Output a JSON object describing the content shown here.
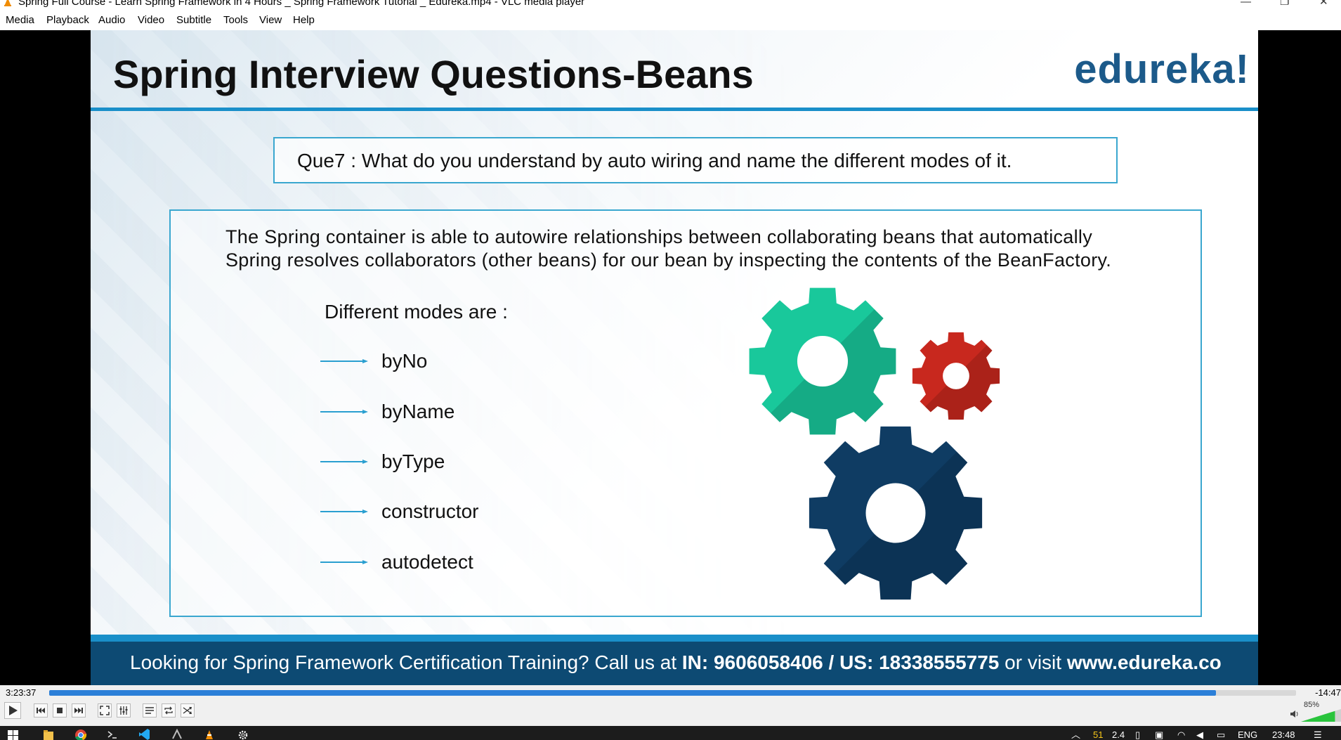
{
  "window": {
    "title": "Spring Full Course - Learn Spring Framework in 4 Hours _ Spring Framework Tutorial _ Edureka.mp4 - VLC media player",
    "minimize_glyph": "—",
    "restore_glyph": "❐",
    "close_glyph": "✕"
  },
  "menu": {
    "items": [
      "Media",
      "Playback",
      "Audio",
      "Video",
      "Subtitle",
      "Tools",
      "View",
      "Help"
    ]
  },
  "slide": {
    "title": "Spring Interview Questions-Beans",
    "logo": "edureka!",
    "question": "Que7 : What do you understand by auto wiring and name the different modes of it.",
    "answer_line1": "The Spring container is able to autowire relationships between collaborating beans that  automatically",
    "answer_line2": "Spring resolves collaborators (other beans) for our bean by inspecting the contents of the BeanFactory.",
    "modes_heading": "Different modes are :",
    "modes": [
      "byNo",
      "byName",
      "byType",
      "constructor",
      "autodetect"
    ],
    "banner_prefix": "Looking for Spring Framework Certification Training? Call us at ",
    "banner_phone": "IN: 9606058406 / US: 18338555775",
    "banner_middle": " or visit ",
    "banner_site": "www.edureka.co",
    "colors": {
      "accent": "#1a8fc9",
      "banner": "#0d4a73",
      "gear_green": "#19c89b",
      "gear_red": "#c8281e",
      "gear_navy": "#0f3c63"
    }
  },
  "player": {
    "elapsed": "3:23:37",
    "remaining": "-14:47",
    "progress_fraction": 0.936,
    "volume": "85%",
    "volume_fraction": 0.85,
    "icons": [
      "play-icon",
      "previous-icon",
      "stop-icon",
      "next-icon",
      "fullscreen-icon",
      "extended-settings-icon",
      "playlist-icon",
      "loop-icon",
      "shuffle-icon",
      "volume-icon"
    ]
  },
  "taskbar": {
    "apps": [
      "windows-start-icon",
      "file-explorer-icon",
      "chrome-icon",
      "terminal-icon",
      "vscode-icon",
      "app-icon",
      "vlc-icon",
      "settings-icon"
    ],
    "tray_num1": "51",
    "tray_num2": "2.4",
    "language": "ENG",
    "clock": "23:48"
  }
}
